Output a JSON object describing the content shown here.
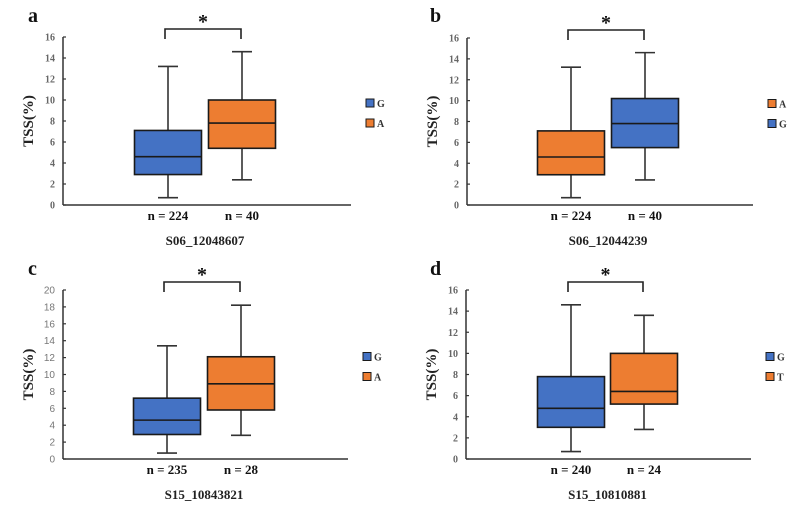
{
  "colors": {
    "G": "#4472C4",
    "A": "#ED7D31",
    "T": "#ED7D31",
    "blue": "#4472C4",
    "orange": "#ED7D31"
  },
  "chart_data": [
    {
      "type": "box",
      "panel": "a",
      "title": "S06_12048607",
      "ylabel": "TSS(%)",
      "xlabel": "S06_12048607",
      "ylim": [
        0,
        16
      ],
      "yticks": [
        0,
        2,
        4,
        6,
        8,
        10,
        12,
        14,
        16
      ],
      "significance": "*",
      "legend_position": "right",
      "legend": [
        {
          "label": "G",
          "color": "#4472C4"
        },
        {
          "label": "A",
          "color": "#ED7D31"
        }
      ],
      "groups": [
        {
          "allele": "G",
          "n_label": "n = 224",
          "color": "#4472C4",
          "whisker_low": 0.7,
          "q1": 2.9,
          "median": 4.6,
          "q3": 7.1,
          "whisker_high": 13.2
        },
        {
          "allele": "A",
          "n_label": "n = 40",
          "color": "#ED7D31",
          "whisker_low": 2.4,
          "q1": 5.4,
          "median": 7.8,
          "q3": 10.0,
          "whisker_high": 14.6
        }
      ]
    },
    {
      "type": "box",
      "panel": "b",
      "title": "S06_12044239",
      "ylabel": "TSS(%)",
      "xlabel": "S06_12044239",
      "ylim": [
        0,
        16
      ],
      "yticks": [
        0,
        2,
        4,
        6,
        8,
        10,
        12,
        14,
        16
      ],
      "significance": "*",
      "legend_position": "right",
      "legend": [
        {
          "label": "A",
          "color": "#ED7D31"
        },
        {
          "label": "G",
          "color": "#4472C4"
        }
      ],
      "groups": [
        {
          "allele": "A",
          "n_label": "n = 224",
          "color": "#ED7D31",
          "whisker_low": 0.7,
          "q1": 2.9,
          "median": 4.6,
          "q3": 7.1,
          "whisker_high": 13.2
        },
        {
          "allele": "G",
          "n_label": "n = 40",
          "color": "#4472C4",
          "whisker_low": 2.4,
          "q1": 5.5,
          "median": 7.8,
          "q3": 10.2,
          "whisker_high": 14.6
        }
      ]
    },
    {
      "type": "box",
      "panel": "c",
      "title": "S15_10843821",
      "ylabel": "TSS(%)",
      "xlabel": "S15_10843821",
      "ylim": [
        0,
        20
      ],
      "yticks": [
        0,
        2,
        4,
        6,
        8,
        10,
        12,
        14,
        16,
        18,
        20
      ],
      "significance": "*",
      "legend_position": "right",
      "legend": [
        {
          "label": "G",
          "color": "#4472C4"
        },
        {
          "label": "A",
          "color": "#ED7D31"
        }
      ],
      "groups": [
        {
          "allele": "G",
          "n_label": "n = 235",
          "color": "#4472C4",
          "whisker_low": 0.7,
          "q1": 2.9,
          "median": 4.6,
          "q3": 7.2,
          "whisker_high": 13.4
        },
        {
          "allele": "A",
          "n_label": "n = 28",
          "color": "#ED7D31",
          "whisker_low": 2.8,
          "q1": 5.8,
          "median": 8.9,
          "q3": 12.1,
          "whisker_high": 18.2
        }
      ]
    },
    {
      "type": "box",
      "panel": "d",
      "title": "S15_10810881",
      "ylabel": "TSS(%)",
      "xlabel": "S15_10810881",
      "ylim": [
        0,
        16
      ],
      "yticks": [
        0,
        2,
        4,
        6,
        8,
        10,
        12,
        14,
        16
      ],
      "significance": "*",
      "legend_position": "right",
      "legend": [
        {
          "label": "G",
          "color": "#4472C4"
        },
        {
          "label": "T",
          "color": "#ED7D31"
        }
      ],
      "groups": [
        {
          "allele": "G",
          "n_label": "n = 240",
          "color": "#4472C4",
          "whisker_low": 0.7,
          "q1": 3.0,
          "median": 4.8,
          "q3": 7.8,
          "whisker_high": 14.6
        },
        {
          "allele": "T",
          "n_label": "n = 24",
          "color": "#ED7D31",
          "whisker_low": 2.8,
          "q1": 5.2,
          "median": 6.4,
          "q3": 10.0,
          "whisker_high": 13.6
        }
      ]
    }
  ]
}
